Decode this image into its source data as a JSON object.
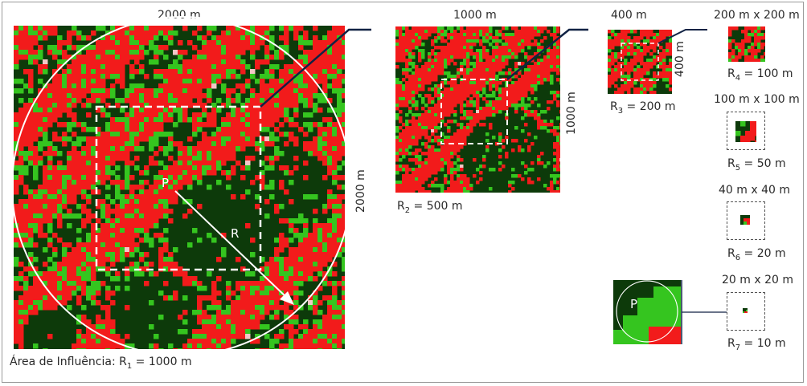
{
  "colors": {
    "dark_vegetation": "#0d3a0a",
    "light_vegetation": "#35c51f",
    "urban_red": "#f21b1b",
    "bare_pink": "#f4c7c7",
    "water_blue": "#1030a0",
    "leader_line": "#112244"
  },
  "panel1": {
    "top_label": "2000 m",
    "side_label": "2000 m",
    "center_label": "P",
    "radius_label": "R",
    "caption_prefix": "Área de Influência: R",
    "caption_sub": "1",
    "caption_suffix": " = 1000 m"
  },
  "panel2": {
    "top_label": "1000 m",
    "side_label": "1000 m",
    "caption_prefix": "R",
    "caption_sub": "2",
    "caption_suffix": " = 500 m"
  },
  "panel3": {
    "top_label": "400 m",
    "side_label": "400 m",
    "caption_prefix": "R",
    "caption_sub": "3",
    "caption_suffix": " = 200 m"
  },
  "panel4": {
    "top_label": "200 m x 200 m",
    "caption_prefix": "R",
    "caption_sub": "4",
    "caption_suffix": " = 100 m"
  },
  "panel5": {
    "top_label": "100 m x 100 m",
    "caption_prefix": "R",
    "caption_sub": "5",
    "caption_suffix": " = 50 m"
  },
  "panel6": {
    "top_label": "40 m x 40 m",
    "caption_prefix": "R",
    "caption_sub": "6",
    "caption_suffix": " = 20 m"
  },
  "panel7": {
    "top_label": "20 m x 20 m",
    "caption_prefix": "R",
    "caption_sub": "7",
    "caption_suffix": " = 10 m"
  },
  "zoom": {
    "center_label": "P"
  }
}
